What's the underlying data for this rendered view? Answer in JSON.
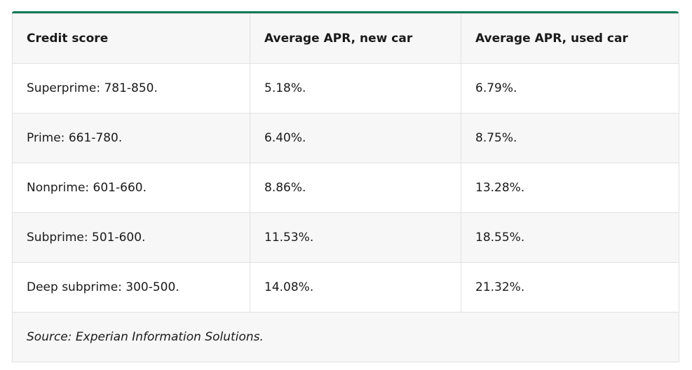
{
  "table": {
    "header": [
      "Credit score",
      "Average APR, new car",
      "Average APR, used car"
    ],
    "rows": [
      [
        "Superprime: 781-850.",
        "5.18%.",
        "6.79%."
      ],
      [
        "Prime: 661-780.",
        "6.40%.",
        "8.75%."
      ],
      [
        "Nonprime: 601-660.",
        "8.86%.",
        "13.28%."
      ],
      [
        "Subprime: 501-600.",
        "11.53%.",
        "18.55%."
      ],
      [
        "Deep subprime: 300-500.",
        "14.08%.",
        "21.32%."
      ]
    ],
    "source": "Source: Experian Information Solutions."
  }
}
